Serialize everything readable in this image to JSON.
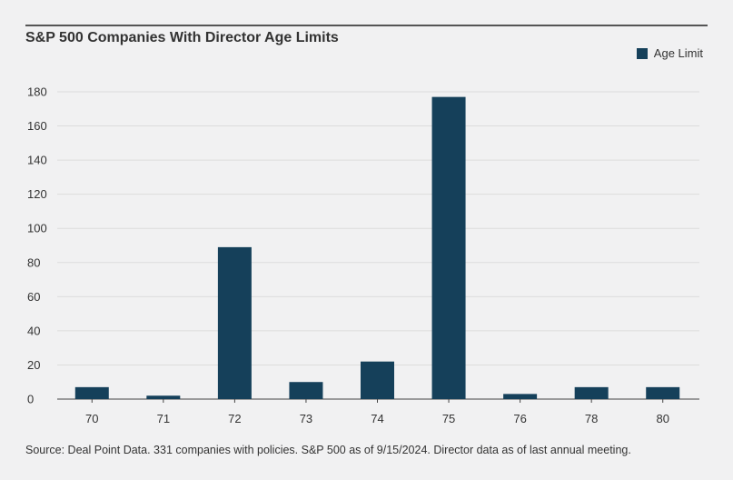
{
  "chart_data": {
    "type": "bar",
    "title": "S&P 500 Companies With Director Age Limits",
    "xlabel": "",
    "ylabel": "",
    "categories": [
      "70",
      "71",
      "72",
      "73",
      "74",
      "75",
      "76",
      "78",
      "80"
    ],
    "series": [
      {
        "name": "Age Limit",
        "values": [
          7,
          2,
          89,
          10,
          22,
          177,
          3,
          7,
          7
        ]
      }
    ],
    "ylim": [
      0,
      180
    ],
    "yticks": [
      0,
      20,
      40,
      60,
      80,
      100,
      120,
      140,
      160,
      180
    ],
    "grid": true,
    "legend_position": "top-right",
    "bar_color": "#15405a"
  },
  "footer": {
    "source": "Source: Deal Point Data. 331 companies with policies. S&P 500 as of 9/15/2024. Director data as of last annual meeting."
  }
}
